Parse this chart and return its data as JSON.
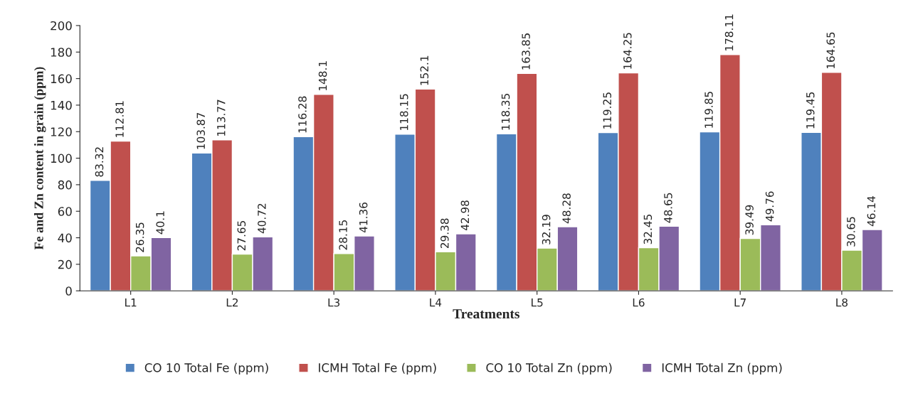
{
  "chart_data": {
    "type": "bar",
    "xlabel": "Treatments",
    "ylabel": "Fe and Zn content in grain (ppm)",
    "categories": [
      "L1",
      "L2",
      "L3",
      "L4",
      "L5",
      "L6",
      "L7",
      "L8"
    ],
    "series": [
      {
        "name": "CO 10 Total Fe (ppm)",
        "color": "#4f81bd",
        "values": [
          83.32,
          103.87,
          116.28,
          118.15,
          118.35,
          119.25,
          119.85,
          119.45
        ]
      },
      {
        "name": "ICMH Total Fe (ppm)",
        "color": "#c0504d",
        "values": [
          112.81,
          113.77,
          148.1,
          152.1,
          163.85,
          164.25,
          178.11,
          164.65
        ]
      },
      {
        "name": "CO 10 Total Zn (ppm)",
        "color": "#9bbb59",
        "values": [
          26.35,
          27.65,
          28.15,
          29.38,
          32.19,
          32.45,
          39.49,
          30.65
        ]
      },
      {
        "name": "ICMH Total Zn (ppm)",
        "color": "#8064a2",
        "values": [
          40.1,
          40.72,
          41.36,
          42.98,
          48.28,
          48.65,
          49.76,
          46.14
        ]
      }
    ],
    "ylim": [
      0,
      200
    ],
    "yticks": [
      0,
      20,
      40,
      60,
      80,
      100,
      120,
      140,
      160,
      180,
      200
    ],
    "data_labels": true,
    "legend": "bottom",
    "grid": false
  }
}
